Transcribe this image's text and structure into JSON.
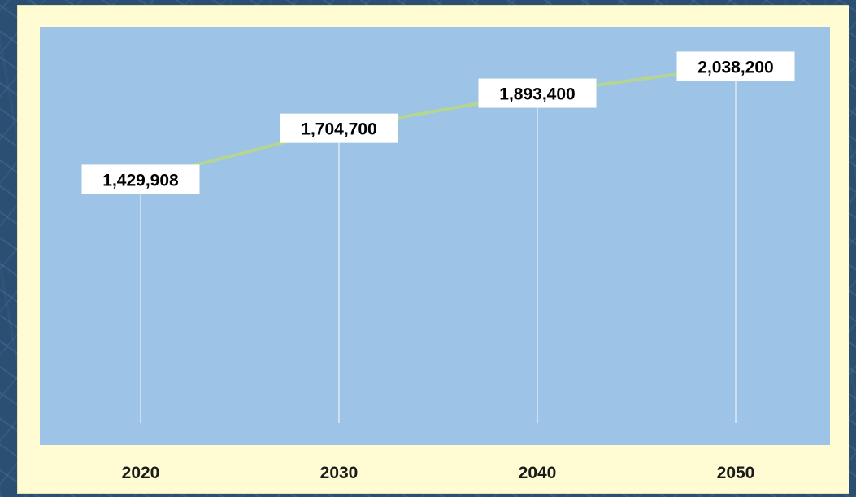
{
  "chart_data": {
    "type": "line",
    "title": "",
    "xlabel": "",
    "ylabel": "",
    "categories": [
      "2020",
      "2030",
      "2040",
      "2050"
    ],
    "series": [
      {
        "values": [
          1429908,
          1704700,
          1893400,
          2038200
        ],
        "labels": [
          "1,429,908",
          "1,704,700",
          "1,893,400",
          "2,038,200"
        ],
        "color": "#b5d592"
      }
    ],
    "ylim": [
      0,
      2500000
    ],
    "grid": "vertical drop lines",
    "legend": "none",
    "colors": {
      "card_background": "#fffbd3",
      "plot_background": "#9dc3e6",
      "drop_lines": "#dbe9f6",
      "label_box": "#ffffff"
    }
  }
}
